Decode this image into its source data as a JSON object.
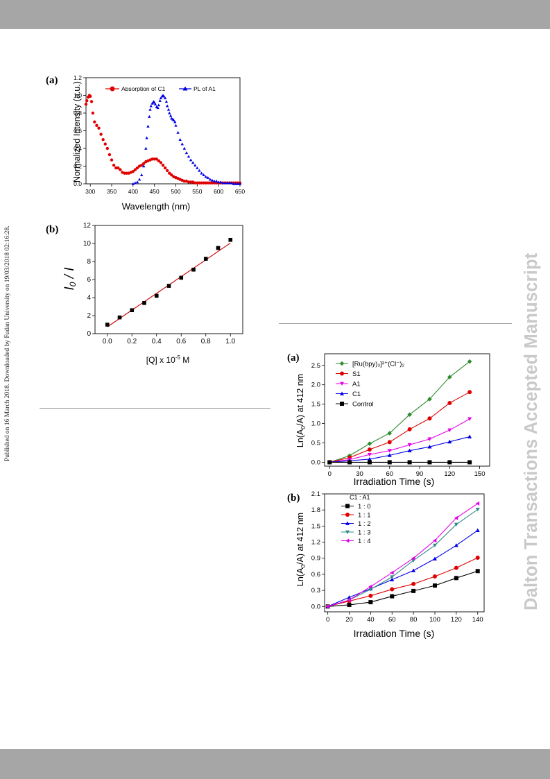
{
  "margin_note": "Published on 16 March 2018. Downloaded by Fudan University on 19/03/2018 02:16:28.",
  "watermark": "Dalton Transactions Accepted Manuscript",
  "colors": {
    "red": "#e00000",
    "blue": "#0000e6",
    "green": "#2e8b2e",
    "magenta": "#e600e6",
    "teal": "#2e8b87",
    "black": "#000000",
    "fit_line": "#cc0000"
  },
  "chart_data": [
    {
      "panel": "(a)",
      "type": "scatter",
      "xlabel": "Wavelength (nm)",
      "ylabel": "Normalized Intensity (a.u.)",
      "xlim": [
        290,
        650
      ],
      "ylim": [
        0,
        1.2
      ],
      "xticks": [
        300,
        350,
        400,
        450,
        500,
        550,
        600,
        650
      ],
      "yticks": [
        0.0,
        0.2,
        0.4,
        0.6,
        0.8,
        1.0,
        1.2
      ],
      "legend": "top",
      "series": [
        {
          "name": "Absorption of C1",
          "marker": "circle",
          "color": "#e00000",
          "x": [
            290,
            292,
            295,
            298,
            300,
            303,
            306,
            310,
            315,
            320,
            325,
            330,
            335,
            340,
            345,
            350,
            355,
            360,
            365,
            370,
            375,
            380,
            385,
            390,
            395,
            400,
            405,
            410,
            415,
            420,
            425,
            430,
            435,
            440,
            445,
            450,
            455,
            460,
            465,
            470,
            475,
            480,
            485,
            490,
            495,
            500,
            505,
            510,
            515,
            520,
            525,
            530,
            535,
            540,
            545,
            550,
            555,
            560,
            565,
            570,
            575,
            580,
            585,
            590,
            595,
            600,
            605,
            610,
            615,
            620,
            625,
            630,
            635,
            640,
            645,
            650
          ],
          "y": [
            0.9,
            0.94,
            0.98,
            1.0,
            0.99,
            0.93,
            0.8,
            0.7,
            0.66,
            0.63,
            0.56,
            0.5,
            0.45,
            0.4,
            0.33,
            0.27,
            0.21,
            0.18,
            0.18,
            0.16,
            0.13,
            0.12,
            0.12,
            0.12,
            0.13,
            0.14,
            0.16,
            0.18,
            0.2,
            0.21,
            0.23,
            0.25,
            0.26,
            0.27,
            0.28,
            0.28,
            0.28,
            0.26,
            0.24,
            0.21,
            0.18,
            0.15,
            0.12,
            0.1,
            0.08,
            0.07,
            0.06,
            0.05,
            0.04,
            0.03,
            0.03,
            0.02,
            0.02,
            0.02,
            0.01,
            0.01,
            0.01,
            0.01,
            0.01,
            0.01,
            0.01,
            0.01,
            0.01,
            0.01,
            0.01,
            0.01,
            0.01,
            0.01,
            0.01,
            0.01,
            0.01,
            0.01,
            0.01,
            0.01,
            0.01,
            0.01
          ]
        },
        {
          "name": "PL of A1",
          "marker": "triangle",
          "color": "#0000e6",
          "x": [
            400,
            405,
            410,
            415,
            420,
            425,
            430,
            432,
            435,
            438,
            440,
            442,
            445,
            448,
            450,
            452,
            455,
            458,
            460,
            463,
            465,
            468,
            470,
            472,
            475,
            478,
            480,
            483,
            485,
            488,
            490,
            493,
            495,
            498,
            500,
            505,
            510,
            515,
            520,
            525,
            530,
            535,
            540,
            545,
            550,
            555,
            560,
            565,
            570,
            575,
            580,
            585,
            590,
            595,
            600,
            605,
            610,
            615,
            620,
            625,
            630,
            635,
            640,
            645,
            650
          ],
          "y": [
            0.0,
            0.01,
            0.02,
            0.05,
            0.1,
            0.2,
            0.4,
            0.52,
            0.65,
            0.76,
            0.84,
            0.88,
            0.91,
            0.93,
            0.92,
            0.9,
            0.87,
            0.86,
            0.89,
            0.94,
            0.97,
            0.99,
            1.0,
            0.99,
            0.97,
            0.93,
            0.88,
            0.84,
            0.8,
            0.77,
            0.74,
            0.73,
            0.72,
            0.7,
            0.66,
            0.58,
            0.5,
            0.45,
            0.4,
            0.35,
            0.31,
            0.27,
            0.24,
            0.21,
            0.18,
            0.15,
            0.12,
            0.1,
            0.08,
            0.07,
            0.05,
            0.04,
            0.03,
            0.03,
            0.02,
            0.02,
            0.01,
            0.01,
            0.01,
            0.01,
            0.01,
            0.0,
            0.0,
            0.0,
            0.0
          ]
        }
      ]
    },
    {
      "panel": "(b)",
      "type": "scatter",
      "xlabel": "[Q] x 10⁻⁵ M",
      "ylabel": "I₀ / I",
      "xlim": [
        -0.1,
        1.1
      ],
      "ylim": [
        0,
        12
      ],
      "xticks": [
        0.0,
        0.2,
        0.4,
        0.6,
        0.8,
        1.0
      ],
      "yticks": [
        0,
        2,
        4,
        6,
        8,
        10,
        12
      ],
      "series": [
        {
          "name": "",
          "marker": "square",
          "color": "#000000",
          "x": [
            0.0,
            0.1,
            0.2,
            0.3,
            0.4,
            0.5,
            0.6,
            0.7,
            0.8,
            0.9,
            1.0
          ],
          "y": [
            1.0,
            1.8,
            2.6,
            3.4,
            4.2,
            5.3,
            6.2,
            7.1,
            8.3,
            9.5,
            10.4
          ]
        }
      ],
      "fit_line": {
        "x": [
          0.0,
          1.0
        ],
        "y": [
          0.75,
          10.05
        ]
      }
    },
    {
      "panel": "(a)",
      "type": "line",
      "xlabel": "Irradiation Time (s)",
      "ylabel": "Ln(A₀/A) at 412 nm",
      "xlim": [
        -5,
        160
      ],
      "ylim": [
        -0.1,
        2.8
      ],
      "xticks": [
        0,
        30,
        60,
        90,
        120,
        150
      ],
      "yticks": [
        0.0,
        0.5,
        1.0,
        1.5,
        2.0,
        2.5
      ],
      "legend": "top-left",
      "x": [
        0,
        20,
        40,
        60,
        80,
        100,
        120,
        140
      ],
      "series": [
        {
          "name": "[Ru(bpy)₃]²⁺(Cl⁻)₂",
          "marker": "diamond",
          "color": "#2e8b2e",
          "values": [
            0.0,
            0.17,
            0.48,
            0.75,
            1.23,
            1.63,
            2.2,
            2.6
          ]
        },
        {
          "name": "S1",
          "marker": "circle",
          "color": "#e00000",
          "values": [
            0.0,
            0.12,
            0.33,
            0.52,
            0.85,
            1.13,
            1.53,
            1.81
          ]
        },
        {
          "name": "A1",
          "marker": "triangle-down",
          "color": "#e600e6",
          "values": [
            0.0,
            0.07,
            0.2,
            0.3,
            0.45,
            0.6,
            0.83,
            1.12
          ]
        },
        {
          "name": "C1",
          "marker": "triangle",
          "color": "#0000e6",
          "values": [
            0.0,
            0.04,
            0.08,
            0.18,
            0.3,
            0.4,
            0.53,
            0.66
          ]
        },
        {
          "name": "Control",
          "marker": "square",
          "color": "#000000",
          "values": [
            0.0,
            0.0,
            0.0,
            0.0,
            0.0,
            0.0,
            0.0,
            0.0
          ]
        }
      ]
    },
    {
      "panel": "(b)",
      "type": "line",
      "xlabel": "Irradiation Time (s)",
      "ylabel": "Ln(A₀/A) at 412 nm",
      "xlim": [
        -3,
        146
      ],
      "ylim": [
        -0.1,
        2.1
      ],
      "xticks": [
        0,
        20,
        40,
        60,
        80,
        100,
        120,
        140
      ],
      "yticks": [
        0.0,
        0.3,
        0.6,
        0.9,
        1.2,
        1.5,
        1.8,
        2.1
      ],
      "legend": "top-left",
      "legend_title": "C1 :  A1",
      "x": [
        0,
        20,
        40,
        60,
        80,
        100,
        120,
        140
      ],
      "series": [
        {
          "name": "1 : 0",
          "marker": "square",
          "color": "#000000",
          "values": [
            0.0,
            0.03,
            0.08,
            0.19,
            0.29,
            0.39,
            0.53,
            0.66
          ]
        },
        {
          "name": "1 : 1",
          "marker": "circle",
          "color": "#e00000",
          "values": [
            0.0,
            0.1,
            0.2,
            0.32,
            0.42,
            0.56,
            0.72,
            0.91
          ]
        },
        {
          "name": "1 : 2",
          "marker": "triangle",
          "color": "#0000e6",
          "values": [
            0.0,
            0.17,
            0.33,
            0.5,
            0.67,
            0.89,
            1.14,
            1.42
          ]
        },
        {
          "name": "1 : 3",
          "marker": "triangle-down",
          "color": "#2e8b87",
          "values": [
            0.0,
            0.12,
            0.32,
            0.55,
            0.86,
            1.14,
            1.53,
            1.81
          ]
        },
        {
          "name": "1 : 4",
          "marker": "triangle-left",
          "color": "#e600e6",
          "values": [
            0.0,
            0.12,
            0.37,
            0.63,
            0.9,
            1.23,
            1.65,
            1.92
          ]
        }
      ]
    }
  ]
}
